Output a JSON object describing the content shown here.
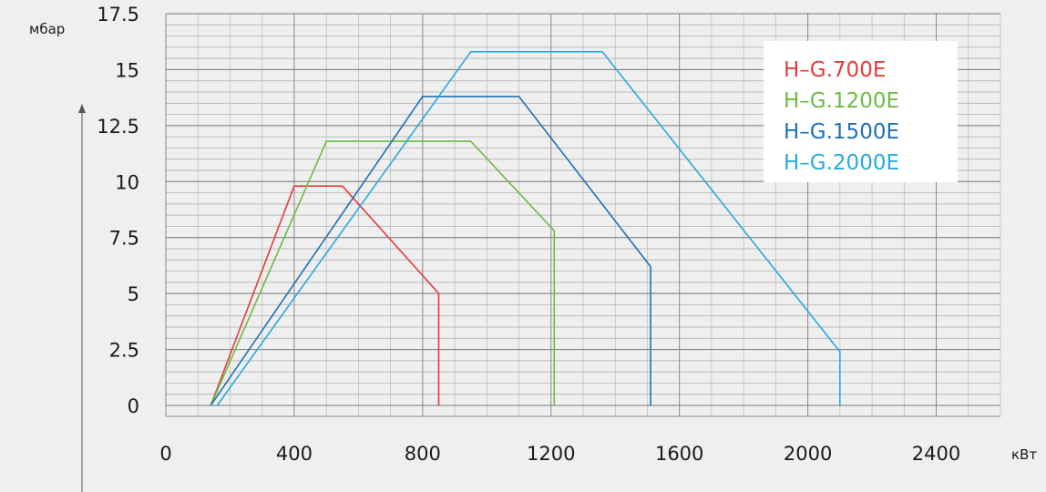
{
  "chart_data": {
    "type": "line",
    "ylabel": "мбар",
    "xlabel": "кВт",
    "xlim": [
      0,
      2600
    ],
    "ylim": [
      0,
      17.5
    ],
    "x_ticks": [
      0,
      400,
      800,
      1200,
      1600,
      2000,
      2400
    ],
    "y_ticks": [
      0,
      2.5,
      5,
      7.5,
      10,
      12.5,
      15,
      17.5
    ],
    "x_tick_labels": [
      "0",
      "400",
      "800",
      "1200",
      "1600",
      "2000",
      "2400"
    ],
    "y_tick_labels": [
      "0",
      "2.5",
      "5",
      "7.5",
      "10",
      "12.5",
      "15",
      "17.5"
    ],
    "grid": true,
    "legend_position": "top-right",
    "series": [
      {
        "name": "H–G.700E",
        "color": "#e53b3b",
        "points": [
          [
            140,
            0
          ],
          [
            400,
            9.8
          ],
          [
            550,
            9.8
          ],
          [
            850,
            5.0
          ],
          [
            850,
            0
          ]
        ]
      },
      {
        "name": "H–G.1200E",
        "color": "#6cbb45",
        "points": [
          [
            140,
            0
          ],
          [
            500,
            11.8
          ],
          [
            950,
            11.8
          ],
          [
            1210,
            7.8
          ],
          [
            1210,
            0
          ]
        ]
      },
      {
        "name": "H–G.1500E",
        "color": "#1f70b8",
        "points": [
          [
            140,
            0
          ],
          [
            800,
            13.8
          ],
          [
            1100,
            13.8
          ],
          [
            1510,
            6.2
          ],
          [
            1510,
            0
          ]
        ]
      },
      {
        "name": "H–G.2000E",
        "color": "#2aa9df",
        "points": [
          [
            160,
            0
          ],
          [
            950,
            15.8
          ],
          [
            1360,
            15.8
          ],
          [
            2100,
            2.4
          ],
          [
            2100,
            0
          ]
        ]
      }
    ]
  }
}
